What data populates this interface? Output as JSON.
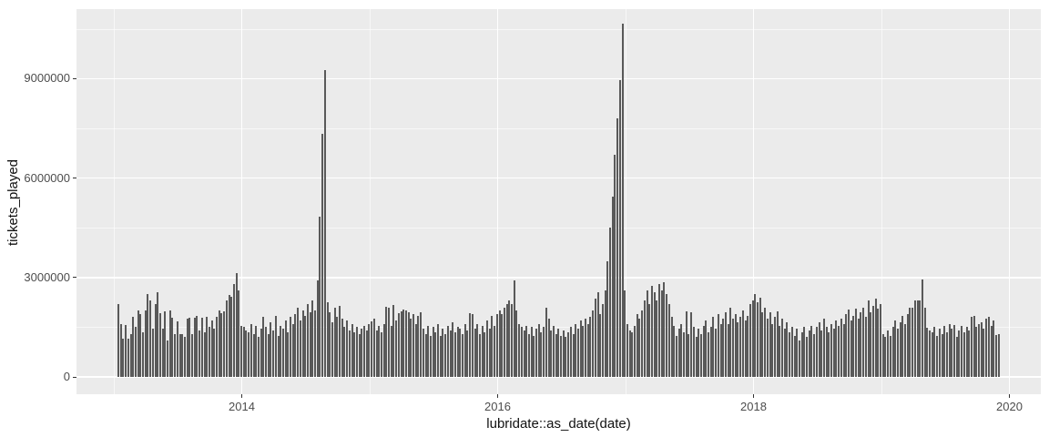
{
  "style": {
    "background": "#FFFFFF",
    "panel_bg": "#EBEBEB",
    "bar_color": "#595959",
    "grid_major_color": "#FFFFFF",
    "grid_minor_color": "#FFFFFF",
    "tick_text_color": "#4D4D4D",
    "tick_mark_color": "#333333",
    "axis_title_color": "#111111"
  },
  "chart_data": {
    "type": "bar",
    "title": "",
    "xlabel": "lubridate::as_date(date)",
    "ylabel": "tickets_played",
    "grid": "on",
    "legend": "none",
    "x_axis": {
      "ticks": [
        {
          "label": "2014",
          "year": 2014
        },
        {
          "label": "2016",
          "year": 2016
        },
        {
          "label": "2018",
          "year": 2018
        },
        {
          "label": "2020",
          "year": 2020
        }
      ],
      "minor_years": [
        2013,
        2015,
        2017,
        2019
      ],
      "xlim_years": [
        2012.71,
        2020.25
      ]
    },
    "y_axis": {
      "ticks": [
        {
          "label": "0",
          "value": 0,
          "value_millions": 0
        },
        {
          "label": "3000000",
          "value": 3000000,
          "value_millions": 3
        },
        {
          "label": "6000000",
          "value": 6000000,
          "value_millions": 6
        },
        {
          "label": "9000000",
          "value": 9000000,
          "value_millions": 9
        }
      ],
      "minor_values_millions": [
        1.5,
        4.5,
        7.5,
        10.5
      ],
      "ylim": [
        -530000,
        11150000
      ]
    },
    "series_name": "tickets_played",
    "interval": "weekly",
    "start_year_decimal": 2013.04,
    "weeks_per_year": 52,
    "value_unit": "millions of tickets (estimated from gridlines)",
    "max_value_millions": 10.65,
    "values_millions": [
      2.2,
      1.6,
      1.15,
      1.58,
      1.15,
      1.3,
      1.8,
      1.5,
      2.0,
      1.9,
      1.35,
      2.0,
      2.5,
      2.3,
      1.45,
      2.2,
      2.55,
      1.93,
      1.45,
      1.97,
      1.1,
      2.0,
      1.78,
      1.3,
      1.68,
      1.28,
      1.3,
      1.2,
      1.75,
      1.78,
      1.3,
      1.78,
      1.85,
      1.4,
      1.78,
      1.35,
      1.8,
      1.5,
      1.7,
      1.45,
      1.8,
      2.0,
      1.93,
      1.97,
      2.3,
      2.47,
      2.42,
      2.8,
      3.13,
      2.6,
      1.55,
      1.5,
      1.4,
      1.35,
      1.6,
      1.3,
      1.55,
      1.2,
      1.45,
      1.8,
      1.5,
      1.3,
      1.65,
      1.4,
      1.85,
      1.25,
      1.55,
      1.45,
      1.7,
      1.35,
      1.8,
      1.6,
      1.9,
      2.1,
      1.7,
      2.0,
      1.85,
      2.2,
      1.95,
      2.3,
      2.0,
      2.9,
      4.85,
      7.35,
      9.27,
      2.25,
      1.95,
      1.65,
      2.1,
      1.8,
      2.15,
      1.75,
      1.5,
      1.7,
      1.4,
      1.6,
      1.35,
      1.5,
      1.3,
      1.45,
      1.55,
      1.4,
      1.6,
      1.67,
      1.75,
      1.4,
      1.55,
      1.35,
      1.6,
      2.12,
      2.08,
      1.55,
      2.17,
      1.7,
      1.92,
      1.98,
      2.03,
      2.0,
      1.95,
      1.75,
      1.9,
      1.6,
      1.85,
      1.95,
      1.45,
      1.3,
      1.55,
      1.25,
      1.5,
      1.35,
      1.6,
      1.25,
      1.45,
      1.3,
      1.55,
      1.4,
      1.65,
      1.35,
      1.5,
      1.45,
      1.3,
      1.6,
      1.4,
      1.92,
      1.9,
      1.45,
      1.6,
      1.3,
      1.55,
      1.35,
      1.7,
      1.45,
      1.85,
      1.55,
      1.9,
      2.0,
      1.9,
      2.1,
      2.2,
      2.3,
      2.2,
      2.9,
      2.0,
      1.6,
      1.5,
      1.4,
      1.55,
      1.3,
      1.5,
      1.25,
      1.45,
      1.6,
      1.35,
      1.5,
      2.08,
      1.75,
      1.4,
      1.55,
      1.3,
      1.45,
      1.25,
      1.4,
      1.2,
      1.35,
      1.5,
      1.3,
      1.6,
      1.45,
      1.7,
      1.55,
      1.75,
      1.6,
      1.8,
      2.0,
      2.35,
      2.55,
      1.9,
      2.2,
      2.6,
      3.5,
      4.5,
      5.45,
      6.7,
      7.8,
      8.97,
      10.65,
      2.6,
      1.6,
      1.4,
      1.35,
      1.55,
      1.9,
      1.75,
      2.0,
      2.3,
      2.6,
      2.2,
      2.75,
      2.55,
      2.3,
      2.8,
      2.6,
      2.85,
      2.5,
      2.2,
      1.8,
      1.55,
      1.25,
      1.45,
      1.6,
      1.35,
      1.98,
      1.3,
      1.95,
      1.5,
      1.2,
      1.45,
      1.3,
      1.55,
      1.7,
      1.35,
      1.5,
      1.8,
      1.45,
      1.9,
      1.6,
      1.75,
      1.95,
      1.6,
      2.1,
      1.75,
      1.9,
      1.65,
      1.8,
      2.0,
      1.7,
      1.85,
      2.2,
      2.3,
      2.5,
      2.25,
      2.4,
      1.95,
      2.1,
      1.75,
      1.95,
      1.6,
      1.8,
      1.98,
      1.55,
      1.75,
      1.45,
      1.65,
      1.35,
      1.5,
      1.25,
      1.45,
      1.1,
      1.35,
      1.5,
      1.2,
      1.4,
      1.55,
      1.3,
      1.5,
      1.65,
      1.4,
      1.76,
      1.5,
      1.35,
      1.6,
      1.45,
      1.7,
      1.55,
      1.75,
      1.6,
      1.9,
      2.03,
      1.7,
      1.85,
      2.06,
      1.75,
      1.95,
      2.1,
      1.8,
      2.3,
      1.95,
      2.15,
      2.35,
      2.05,
      2.2,
      1.3,
      1.2,
      1.4,
      1.25,
      1.5,
      1.7,
      1.45,
      1.65,
      1.85,
      1.6,
      1.9,
      2.1,
      2.1,
      2.3,
      2.3,
      2.3,
      2.94,
      2.08,
      1.48,
      1.4,
      1.35,
      1.5,
      1.25,
      1.45,
      1.3,
      1.55,
      1.35,
      1.6,
      1.45,
      1.57,
      1.2,
      1.4,
      1.55,
      1.35,
      1.5,
      1.4,
      1.8,
      1.85,
      1.5,
      1.6,
      1.66,
      1.45,
      1.75,
      1.8,
      1.55,
      1.7,
      1.26,
      1.3
    ]
  }
}
